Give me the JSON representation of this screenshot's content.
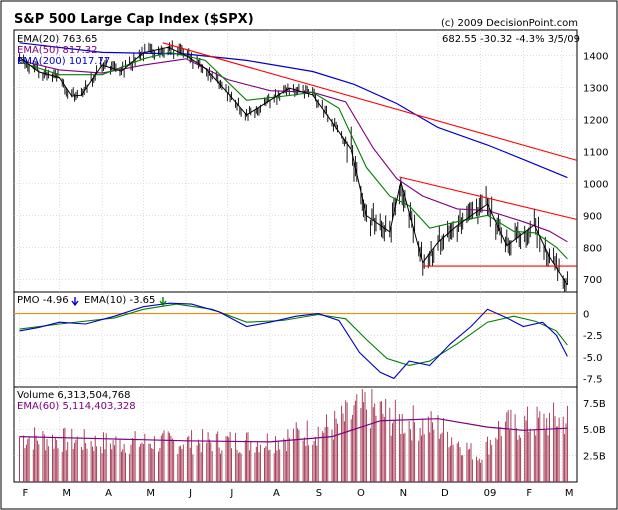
{
  "chart_data": {
    "type": "line",
    "title": "S&P 500 Large Cap Index ($SPX)",
    "copyright": "(c) 2009 DecisionPoint.com",
    "quote": "682.55  -30.32  -4.3%  3/5/09",
    "x_month_labels": [
      "F",
      "M",
      "A",
      "M",
      "J",
      "J",
      "A",
      "S",
      "O",
      "N",
      "D",
      "09",
      "F",
      "M"
    ],
    "price_panel": {
      "legend": [
        {
          "label": "EMA(20) 763.65",
          "color": "#000000"
        },
        {
          "label": "EMA(50) 817.32",
          "color": "#800080"
        },
        {
          "label": "EMA(200) 1017.77",
          "color": "#0000cc"
        }
      ],
      "ylim": [
        660,
        1480
      ],
      "y_ticks": [
        700,
        800,
        900,
        1000,
        1100,
        1200,
        1300,
        1400
      ],
      "close_series": [
        [
          "2008-02-01",
          1395
        ],
        [
          "2008-02-15",
          1349
        ],
        [
          "2008-03-01",
          1331
        ],
        [
          "2008-03-10",
          1273
        ],
        [
          "2008-03-17",
          1276
        ],
        [
          "2008-04-01",
          1370
        ],
        [
          "2008-04-15",
          1351
        ],
        [
          "2008-05-01",
          1409
        ],
        [
          "2008-05-19",
          1426
        ],
        [
          "2008-06-01",
          1400
        ],
        [
          "2008-06-15",
          1360
        ],
        [
          "2008-07-01",
          1284
        ],
        [
          "2008-07-15",
          1214
        ],
        [
          "2008-08-01",
          1260
        ],
        [
          "2008-08-15",
          1298
        ],
        [
          "2008-09-01",
          1277
        ],
        [
          "2008-09-15",
          1192
        ],
        [
          "2008-09-29",
          1106
        ],
        [
          "2008-10-10",
          899
        ],
        [
          "2008-10-27",
          848
        ],
        [
          "2008-11-04",
          1005
        ],
        [
          "2008-11-20",
          752
        ],
        [
          "2008-12-01",
          816
        ],
        [
          "2008-12-15",
          868
        ],
        [
          "2009-01-06",
          935
        ],
        [
          "2009-01-20",
          805
        ],
        [
          "2009-02-09",
          870
        ],
        [
          "2009-02-20",
          770
        ],
        [
          "2009-03-05",
          682
        ]
      ],
      "ema20": [
        [
          "2008-02-01",
          1380
        ],
        [
          "2008-03-01",
          1340
        ],
        [
          "2008-04-01",
          1340
        ],
        [
          "2008-05-01",
          1390
        ],
        [
          "2008-05-20",
          1410
        ],
        [
          "2008-06-15",
          1385
        ],
        [
          "2008-07-15",
          1260
        ],
        [
          "2008-08-15",
          1275
        ],
        [
          "2008-09-01",
          1285
        ],
        [
          "2008-09-20",
          1235
        ],
        [
          "2008-10-10",
          1050
        ],
        [
          "2008-10-27",
          960
        ],
        [
          "2008-11-10",
          930
        ],
        [
          "2008-11-25",
          860
        ],
        [
          "2008-12-15",
          880
        ],
        [
          "2009-01-06",
          900
        ],
        [
          "2009-01-25",
          850
        ],
        [
          "2009-02-10",
          845
        ],
        [
          "2009-02-25",
          800
        ],
        [
          "2009-03-05",
          764
        ]
      ],
      "ema50": [
        [
          "2008-02-01",
          1385
        ],
        [
          "2008-03-01",
          1355
        ],
        [
          "2008-04-01",
          1345
        ],
        [
          "2008-05-01",
          1370
        ],
        [
          "2008-06-01",
          1390
        ],
        [
          "2008-07-01",
          1325
        ],
        [
          "2008-08-01",
          1290
        ],
        [
          "2008-09-01",
          1285
        ],
        [
          "2008-09-25",
          1255
        ],
        [
          "2008-10-15",
          1110
        ],
        [
          "2008-11-01",
          1015
        ],
        [
          "2008-11-20",
          960
        ],
        [
          "2008-12-15",
          920
        ],
        [
          "2009-01-06",
          915
        ],
        [
          "2009-02-01",
          880
        ],
        [
          "2009-02-20",
          850
        ],
        [
          "2009-03-05",
          817
        ]
      ],
      "ema200": [
        [
          "2008-02-01",
          1440
        ],
        [
          "2008-04-01",
          1410
        ],
        [
          "2008-06-01",
          1405
        ],
        [
          "2008-07-15",
          1385
        ],
        [
          "2008-09-01",
          1350
        ],
        [
          "2008-10-01",
          1310
        ],
        [
          "2008-11-01",
          1250
        ],
        [
          "2008-12-01",
          1175
        ],
        [
          "2009-01-06",
          1120
        ],
        [
          "2009-02-01",
          1075
        ],
        [
          "2009-03-05",
          1018
        ]
      ],
      "trendlines": [
        {
          "from": [
            "2008-05-15",
            1440
          ],
          "to": [
            "2009-03-20",
            1072
          ],
          "color": "#ff0000"
        },
        {
          "from": [
            "2008-11-03",
            1020
          ],
          "to": [
            "2009-03-20",
            887
          ],
          "color": "#ff0000"
        },
        {
          "from": [
            "2008-11-20",
            741
          ],
          "to": [
            "2009-03-20",
            741
          ],
          "color": "#ff0000"
        }
      ]
    },
    "pmo_panel": {
      "legend": [
        {
          "label": "PMO -4.96",
          "color": "#0000cc",
          "arrow": "down"
        },
        {
          "label": "EMA(10) -3.65",
          "color": "#008000",
          "arrow": "down"
        }
      ],
      "ylim": [
        -8.5,
        2.5
      ],
      "y_ticks": [
        0,
        -2.5,
        -5.0,
        -7.5
      ],
      "y_tick_labels": [
        "0",
        "-2.5",
        "-5.0",
        "-7.5"
      ],
      "pmo": [
        [
          "2008-02-01",
          -2.0
        ],
        [
          "2008-02-15",
          -1.6
        ],
        [
          "2008-03-01",
          -1.0
        ],
        [
          "2008-03-20",
          -1.2
        ],
        [
          "2008-04-10",
          -0.3
        ],
        [
          "2008-05-01",
          0.8
        ],
        [
          "2008-05-20",
          1.2
        ],
        [
          "2008-06-05",
          1.1
        ],
        [
          "2008-06-25",
          0.2
        ],
        [
          "2008-07-15",
          -1.5
        ],
        [
          "2008-08-01",
          -1.0
        ],
        [
          "2008-08-20",
          -0.3
        ],
        [
          "2008-09-05",
          0.0
        ],
        [
          "2008-09-20",
          -0.8
        ],
        [
          "2008-10-05",
          -4.5
        ],
        [
          "2008-10-20",
          -6.8
        ],
        [
          "2008-10-30",
          -7.5
        ],
        [
          "2008-11-10",
          -5.5
        ],
        [
          "2008-11-25",
          -6.0
        ],
        [
          "2008-12-10",
          -3.5
        ],
        [
          "2008-12-25",
          -1.5
        ],
        [
          "2009-01-06",
          0.5
        ],
        [
          "2009-01-20",
          -0.5
        ],
        [
          "2009-02-01",
          -1.5
        ],
        [
          "2009-02-15",
          -1.0
        ],
        [
          "2009-02-25",
          -2.5
        ],
        [
          "2009-03-05",
          -4.96
        ]
      ],
      "signal": [
        [
          "2008-02-01",
          -1.8
        ],
        [
          "2008-03-01",
          -1.2
        ],
        [
          "2008-04-10",
          -0.5
        ],
        [
          "2008-05-01",
          0.5
        ],
        [
          "2008-05-25",
          1.1
        ],
        [
          "2008-06-20",
          0.5
        ],
        [
          "2008-07-15",
          -1.0
        ],
        [
          "2008-08-10",
          -0.8
        ],
        [
          "2008-09-05",
          -0.1
        ],
        [
          "2008-09-25",
          -0.6
        ],
        [
          "2008-10-10",
          -3.0
        ],
        [
          "2008-10-25",
          -5.2
        ],
        [
          "2008-11-10",
          -6.0
        ],
        [
          "2008-11-25",
          -5.5
        ],
        [
          "2008-12-15",
          -3.5
        ],
        [
          "2009-01-06",
          -1.0
        ],
        [
          "2009-01-25",
          -0.3
        ],
        [
          "2009-02-10",
          -0.9
        ],
        [
          "2009-02-25",
          -2.0
        ],
        [
          "2009-03-05",
          -3.65
        ]
      ],
      "zero_line_color": "#ff8c00"
    },
    "volume_panel": {
      "legend": [
        {
          "label": "Volume  6,313,504,768",
          "color": "#000000"
        },
        {
          "label": "EMA(60) 5,114,403,328",
          "color": "#800080"
        }
      ],
      "ylim": [
        0,
        9.0
      ],
      "y_ticks": [
        2.5,
        5.0,
        7.5
      ],
      "y_tick_labels": [
        "2.5B",
        "5.0B",
        "7.5B"
      ],
      "volume_profile_billions": [
        [
          "2008-02-01",
          4.5
        ],
        [
          "2008-04-01",
          3.9
        ],
        [
          "2008-06-01",
          4.0
        ],
        [
          "2008-08-01",
          4.1
        ],
        [
          "2008-09-15",
          5.5
        ],
        [
          "2008-10-10",
          7.5
        ],
        [
          "2008-11-01",
          6.2
        ],
        [
          "2008-12-01",
          5.5
        ],
        [
          "2008-12-31",
          2.5
        ],
        [
          "2009-01-15",
          5.5
        ],
        [
          "2009-02-15",
          6.0
        ],
        [
          "2009-03-05",
          6.3
        ]
      ],
      "ema60_billions": [
        [
          "2008-02-01",
          4.3
        ],
        [
          "2008-04-01",
          4.1
        ],
        [
          "2008-06-01",
          3.9
        ],
        [
          "2008-08-01",
          3.8
        ],
        [
          "2008-09-15",
          4.3
        ],
        [
          "2008-10-20",
          5.8
        ],
        [
          "2008-12-01",
          6.0
        ],
        [
          "2009-01-06",
          5.2
        ],
        [
          "2009-02-01",
          4.9
        ],
        [
          "2009-03-05",
          5.1
        ]
      ]
    },
    "x_start": "2008-01-28",
    "x_end": "2009-03-12"
  }
}
